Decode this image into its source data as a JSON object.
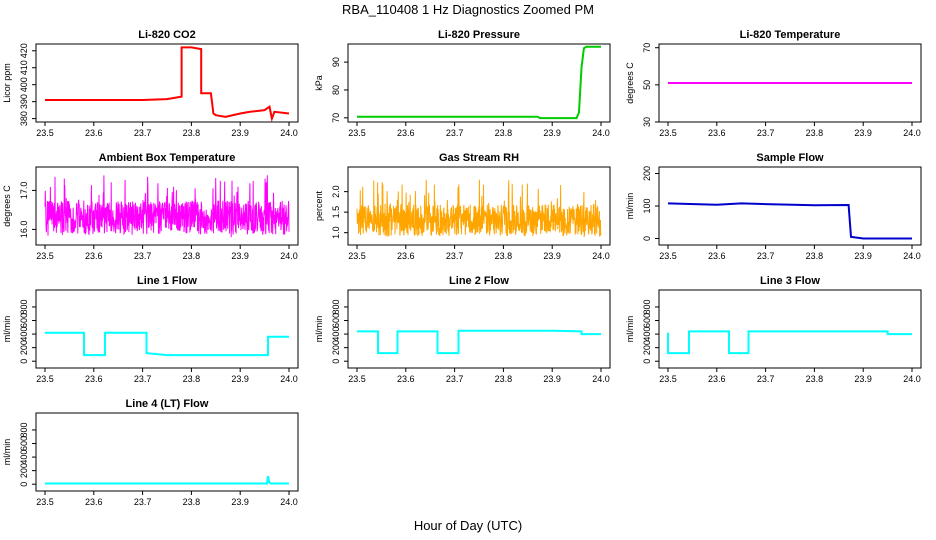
{
  "title": "RBA_110408 1 Hz Diagnostics Zoomed PM",
  "xlabel": "Hour of Day (UTC)",
  "chart_data": [
    {
      "type": "line",
      "title": "Li-820 CO2",
      "ylabel": "Licor ppm",
      "color": "#ff0000",
      "xlim": [
        23.5,
        24.0
      ],
      "xticks": [
        "23.5",
        "23.6",
        "23.7",
        "23.8",
        "23.9",
        "24.0"
      ],
      "ylim": [
        378,
        424
      ],
      "yticks": [
        "380",
        "390",
        "400",
        "410",
        "420"
      ],
      "series": [
        {
          "x": [
            23.5,
            23.6,
            23.7,
            23.75,
            23.78,
            23.78,
            23.8,
            23.82,
            23.82,
            23.84,
            23.845,
            23.85,
            23.87,
            23.9,
            23.92,
            23.95,
            23.96,
            23.965,
            23.97,
            24.0
          ],
          "y": [
            391,
            391,
            391,
            391.5,
            393,
            422,
            422,
            421,
            395,
            395,
            383,
            382,
            381,
            383,
            384,
            385,
            387,
            380,
            384,
            383
          ]
        }
      ]
    },
    {
      "type": "line",
      "title": "Li-820 Pressure",
      "ylabel": "kPa",
      "color": "#00cc00",
      "xlim": [
        23.5,
        24.0
      ],
      "xticks": [
        "23.5",
        "23.6",
        "23.7",
        "23.8",
        "23.9",
        "24.0"
      ],
      "ylim": [
        68.5,
        96.5
      ],
      "yticks": [
        "70",
        "80",
        "90"
      ],
      "series": [
        {
          "x": [
            23.5,
            23.6,
            23.7,
            23.8,
            23.87,
            23.875,
            23.9,
            23.95,
            23.955,
            23.96,
            23.965,
            23.97,
            23.98,
            24.0
          ],
          "y": [
            70.4,
            70.4,
            70.4,
            70.4,
            70.4,
            69.9,
            69.9,
            69.9,
            72,
            88,
            95,
            95.5,
            95.5,
            95.5
          ]
        }
      ]
    },
    {
      "type": "line",
      "title": "Li-820 Temperature",
      "ylabel": "degrees C",
      "color": "#ff00ff",
      "xlim": [
        23.5,
        24.0
      ],
      "xticks": [
        "23.5",
        "23.6",
        "23.7",
        "23.8",
        "23.9",
        "24.0"
      ],
      "ylim": [
        30,
        72
      ],
      "yticks": [
        "30",
        "50",
        "70"
      ],
      "series": [
        {
          "x": [
            23.5,
            24.0
          ],
          "y": [
            51,
            51
          ]
        }
      ]
    },
    {
      "type": "line",
      "title": "Ambient Box Temperature",
      "ylabel": "degrees C",
      "color": "#ff00ff",
      "noisy": true,
      "xlim": [
        23.5,
        24.0
      ],
      "xticks": [
        "23.5",
        "23.6",
        "23.7",
        "23.8",
        "23.9",
        "24.0"
      ],
      "ylim": [
        15.6,
        17.6
      ],
      "yticks": [
        "16.0",
        "17.0"
      ],
      "band": [
        15.8,
        17.4
      ],
      "base": 16.3
    },
    {
      "type": "line",
      "title": "Gas Stream RH",
      "ylabel": "percent",
      "color": "#ffa500",
      "noisy": true,
      "xlim": [
        23.5,
        24.0
      ],
      "xticks": [
        "23.5",
        "23.6",
        "23.7",
        "23.8",
        "23.9",
        "24.0"
      ],
      "ylim": [
        0.7,
        2.6
      ],
      "yticks": [
        "1.0",
        "1.5",
        "2.0"
      ],
      "band": [
        0.9,
        2.3
      ],
      "base": 1.3
    },
    {
      "type": "line",
      "title": "Sample Flow",
      "ylabel": "ml/min",
      "color": "#0000cc",
      "xlim": [
        23.5,
        24.0
      ],
      "xticks": [
        "23.5",
        "23.6",
        "23.7",
        "23.8",
        "23.9",
        "24.0"
      ],
      "ylim": [
        -20,
        220
      ],
      "yticks": [
        "0",
        "100",
        "200"
      ],
      "series": [
        {
          "x": [
            23.5,
            23.6,
            23.65,
            23.7,
            23.8,
            23.87,
            23.875,
            23.9,
            24.0
          ],
          "y": [
            108,
            104,
            108,
            106,
            102,
            103,
            5,
            0,
            0
          ]
        }
      ]
    },
    {
      "type": "line",
      "title": "Line 1 Flow",
      "ylabel": "ml/min",
      "color": "#00ffff",
      "xlim": [
        23.5,
        24.0
      ],
      "xticks": [
        "23.5",
        "23.6",
        "23.7",
        "23.8",
        "23.9",
        "24.0"
      ],
      "ylim": [
        -100,
        1050
      ],
      "yticks": [
        "0",
        "200",
        "400",
        "600",
        "800"
      ],
      "series": [
        {
          "x": [
            23.5,
            23.58,
            23.58,
            23.623,
            23.623,
            23.708,
            23.708,
            23.75,
            23.8,
            23.9,
            23.957,
            23.957,
            24.0
          ],
          "y": [
            420,
            420,
            90,
            90,
            420,
            420,
            120,
            90,
            90,
            90,
            90,
            360,
            360
          ]
        }
      ]
    },
    {
      "type": "line",
      "title": "Line 2 Flow",
      "ylabel": "ml/min",
      "color": "#00ffff",
      "xlim": [
        23.5,
        24.0
      ],
      "xticks": [
        "23.5",
        "23.6",
        "23.7",
        "23.8",
        "23.9",
        "24.0"
      ],
      "ylim": [
        -100,
        1050
      ],
      "yticks": [
        "0",
        "200",
        "400",
        "600",
        "800"
      ],
      "series": [
        {
          "x": [
            23.5,
            23.543,
            23.543,
            23.583,
            23.583,
            23.665,
            23.665,
            23.708,
            23.708,
            23.8,
            23.9,
            23.96,
            23.96,
            24.0
          ],
          "y": [
            440,
            440,
            120,
            120,
            440,
            440,
            120,
            120,
            450,
            450,
            450,
            440,
            400,
            400
          ]
        }
      ]
    },
    {
      "type": "line",
      "title": "Line 3 Flow",
      "ylabel": "ml/min",
      "color": "#00ffff",
      "xlim": [
        23.5,
        24.0
      ],
      "xticks": [
        "23.5",
        "23.6",
        "23.7",
        "23.8",
        "23.9",
        "24.0"
      ],
      "ylim": [
        -100,
        1050
      ],
      "yticks": [
        "0",
        "200",
        "400",
        "600",
        "800"
      ],
      "series": [
        {
          "x": [
            23.5,
            23.5,
            23.543,
            23.543,
            23.625,
            23.625,
            23.665,
            23.665,
            23.8,
            23.95,
            23.95,
            24.0
          ],
          "y": [
            420,
            120,
            120,
            440,
            440,
            120,
            120,
            440,
            440,
            440,
            400,
            400
          ]
        }
      ]
    },
    {
      "type": "line",
      "title": "Line 4 (LT) Flow",
      "ylabel": "ml/min",
      "color": "#00ffff",
      "xlim": [
        23.5,
        24.0
      ],
      "xticks": [
        "23.5",
        "23.6",
        "23.7",
        "23.8",
        "23.9",
        "24.0"
      ],
      "ylim": [
        -100,
        1050
      ],
      "yticks": [
        "0",
        "200",
        "400",
        "600",
        "800"
      ],
      "series": [
        {
          "x": [
            23.5,
            23.7,
            23.9,
            23.955,
            23.957,
            23.959,
            23.962,
            24.0
          ],
          "y": [
            10,
            10,
            10,
            10,
            120,
            40,
            10,
            10
          ]
        }
      ]
    }
  ]
}
